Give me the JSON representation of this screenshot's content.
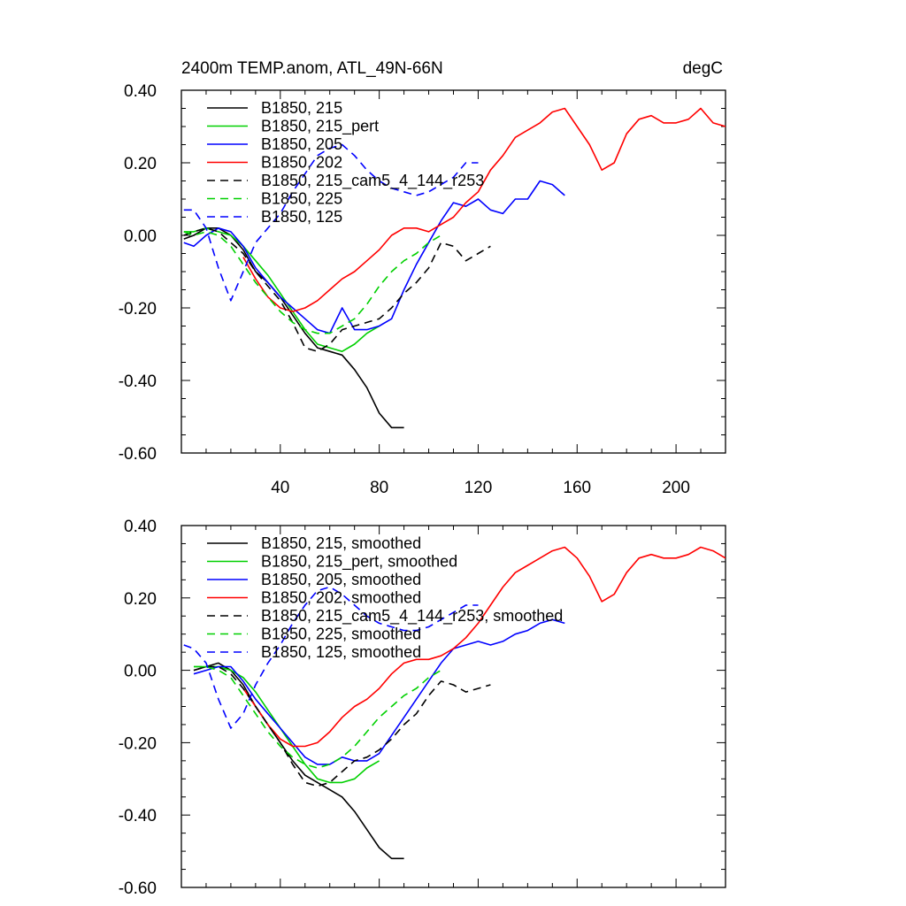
{
  "chart_data": [
    {
      "type": "line",
      "title": "2400m TEMP.anom, ATL_49N-66N",
      "units": "degC",
      "xlim": [
        0,
        220
      ],
      "ylim": [
        -0.6,
        0.4
      ],
      "x_tick_values": [
        40,
        80,
        120,
        160,
        200
      ],
      "x_tick_labels": [
        "40",
        "80",
        "120",
        "160",
        "200"
      ],
      "y_tick_values": [
        0.4,
        0.2,
        0.0,
        -0.2,
        -0.4,
        -0.6
      ],
      "y_tick_labels": [
        "0.40",
        "0.20",
        "0.00",
        "-0.20",
        "-0.40",
        "-0.60"
      ],
      "grid": false,
      "legend_position": "top-left",
      "series": [
        {
          "name": "B1850, 215",
          "color": "#000000",
          "dash": "solid",
          "x": [
            1,
            5,
            10,
            15,
            20,
            25,
            30,
            35,
            40,
            45,
            50,
            55,
            60,
            65,
            70,
            75,
            80,
            85,
            90
          ],
          "y": [
            -0.01,
            0.0,
            0.02,
            0.02,
            0.0,
            -0.04,
            -0.1,
            -0.13,
            -0.17,
            -0.22,
            -0.27,
            -0.31,
            -0.32,
            -0.33,
            -0.37,
            -0.42,
            -0.49,
            -0.53,
            -0.53
          ]
        },
        {
          "name": "B1850, 215_pert",
          "color": "#00d000",
          "dash": "solid",
          "x": [
            1,
            5,
            10,
            15,
            20,
            25,
            30,
            35,
            40,
            45,
            50,
            55,
            60,
            65,
            70,
            75,
            80
          ],
          "y": [
            0.01,
            0.01,
            0.02,
            0.01,
            0.0,
            -0.03,
            -0.07,
            -0.11,
            -0.16,
            -0.21,
            -0.26,
            -0.3,
            -0.31,
            -0.32,
            -0.3,
            -0.27,
            -0.25
          ]
        },
        {
          "name": "B1850, 205",
          "color": "#0000ff",
          "dash": "solid",
          "x": [
            1,
            5,
            10,
            15,
            20,
            25,
            30,
            35,
            40,
            45,
            50,
            55,
            60,
            65,
            70,
            75,
            80,
            85,
            90,
            95,
            100,
            105,
            110,
            115,
            120,
            125,
            130,
            135,
            140,
            145,
            150,
            155
          ],
          "y": [
            -0.02,
            -0.03,
            0.0,
            0.02,
            0.01,
            -0.03,
            -0.09,
            -0.13,
            -0.17,
            -0.2,
            -0.23,
            -0.26,
            -0.27,
            -0.2,
            -0.26,
            -0.26,
            -0.25,
            -0.23,
            -0.15,
            -0.08,
            -0.02,
            0.04,
            0.09,
            0.08,
            0.1,
            0.07,
            0.06,
            0.1,
            0.1,
            0.15,
            0.14,
            0.11
          ]
        },
        {
          "name": "B1850, 202",
          "color": "#ff0000",
          "dash": "solid",
          "x": [
            25,
            30,
            35,
            40,
            45,
            50,
            55,
            60,
            65,
            70,
            75,
            80,
            85,
            90,
            95,
            100,
            105,
            110,
            115,
            120,
            125,
            130,
            135,
            140,
            145,
            150,
            155,
            160,
            165,
            170,
            175,
            180,
            185,
            190,
            195,
            200,
            205,
            210,
            215,
            220
          ],
          "y": [
            -0.06,
            -0.12,
            -0.17,
            -0.2,
            -0.21,
            -0.2,
            -0.18,
            -0.15,
            -0.12,
            -0.1,
            -0.07,
            -0.04,
            0.0,
            0.02,
            0.02,
            0.01,
            0.03,
            0.05,
            0.09,
            0.12,
            0.18,
            0.22,
            0.27,
            0.29,
            0.31,
            0.34,
            0.35,
            0.3,
            0.25,
            0.18,
            0.2,
            0.28,
            0.32,
            0.33,
            0.31,
            0.31,
            0.32,
            0.35,
            0.31,
            0.3
          ]
        },
        {
          "name": "B1850, 215_cam5_4_144_r253",
          "color": "#000000",
          "dash": "dashed",
          "x": [
            1,
            5,
            10,
            15,
            20,
            25,
            30,
            35,
            40,
            45,
            50,
            55,
            60,
            65,
            70,
            75,
            80,
            85,
            90,
            95,
            100,
            105,
            110,
            115,
            120,
            125
          ],
          "y": [
            0.0,
            0.01,
            0.02,
            0.01,
            -0.02,
            -0.05,
            -0.1,
            -0.14,
            -0.18,
            -0.24,
            -0.31,
            -0.32,
            -0.3,
            -0.26,
            -0.25,
            -0.24,
            -0.23,
            -0.2,
            -0.16,
            -0.13,
            -0.09,
            -0.02,
            -0.03,
            -0.07,
            -0.05,
            -0.03
          ]
        },
        {
          "name": "B1850, 225",
          "color": "#00d000",
          "dash": "dashed",
          "x": [
            1,
            5,
            10,
            15,
            20,
            25,
            30,
            35,
            40,
            45,
            50,
            55,
            60,
            65,
            70,
            75,
            80,
            85,
            90,
            95,
            100,
            105
          ],
          "y": [
            0.01,
            0.0,
            0.01,
            0.0,
            -0.03,
            -0.08,
            -0.13,
            -0.17,
            -0.21,
            -0.24,
            -0.26,
            -0.27,
            -0.27,
            -0.25,
            -0.23,
            -0.19,
            -0.14,
            -0.1,
            -0.07,
            -0.05,
            -0.02,
            0.0
          ]
        },
        {
          "name": "B1850, 125",
          "color": "#0000ff",
          "dash": "dashed",
          "x": [
            1,
            5,
            10,
            15,
            20,
            25,
            30,
            35,
            40,
            45,
            50,
            55,
            60,
            65,
            70,
            75,
            80,
            85,
            90,
            95,
            100,
            105,
            110,
            115,
            120
          ],
          "y": [
            0.07,
            0.07,
            0.02,
            -0.09,
            -0.18,
            -0.1,
            -0.02,
            0.02,
            0.06,
            0.12,
            0.17,
            0.22,
            0.24,
            0.25,
            0.22,
            0.18,
            0.15,
            0.13,
            0.12,
            0.11,
            0.12,
            0.14,
            0.16,
            0.2,
            0.2
          ]
        }
      ]
    },
    {
      "type": "line",
      "title": "",
      "units": "",
      "xlim": [
        0,
        220
      ],
      "ylim": [
        -0.6,
        0.4
      ],
      "x_tick_values": [
        40,
        80,
        120,
        160,
        200
      ],
      "y_tick_values": [
        0.4,
        0.2,
        0.0,
        -0.2,
        -0.4,
        -0.6
      ],
      "y_tick_labels": [
        "0.40",
        "0.20",
        "0.00",
        "-0.20",
        "-0.40",
        "-0.60"
      ],
      "grid": false,
      "legend_position": "top-left",
      "series": [
        {
          "name": "B1850, 215, smoothed",
          "color": "#000000",
          "dash": "solid",
          "x": [
            5,
            10,
            15,
            20,
            25,
            30,
            35,
            40,
            45,
            50,
            55,
            60,
            65,
            70,
            75,
            80,
            85,
            90
          ],
          "y": [
            0.0,
            0.01,
            0.02,
            0.0,
            -0.04,
            -0.1,
            -0.15,
            -0.2,
            -0.25,
            -0.29,
            -0.31,
            -0.33,
            -0.35,
            -0.39,
            -0.44,
            -0.49,
            -0.52,
            -0.52
          ]
        },
        {
          "name": "B1850, 215_pert, smoothed",
          "color": "#00d000",
          "dash": "solid",
          "x": [
            5,
            10,
            15,
            20,
            25,
            30,
            35,
            40,
            45,
            50,
            55,
            60,
            65,
            70,
            75,
            80
          ],
          "y": [
            0.01,
            0.01,
            0.01,
            0.0,
            -0.02,
            -0.06,
            -0.11,
            -0.16,
            -0.21,
            -0.26,
            -0.3,
            -0.31,
            -0.31,
            -0.3,
            -0.27,
            -0.25
          ]
        },
        {
          "name": "B1850, 205, smoothed",
          "color": "#0000ff",
          "dash": "solid",
          "x": [
            5,
            10,
            15,
            20,
            25,
            30,
            35,
            40,
            45,
            50,
            55,
            60,
            65,
            70,
            75,
            80,
            85,
            90,
            95,
            100,
            105,
            110,
            115,
            120,
            125,
            130,
            135,
            140,
            145,
            150,
            155
          ],
          "y": [
            -0.01,
            0.0,
            0.01,
            0.01,
            -0.03,
            -0.08,
            -0.12,
            -0.16,
            -0.2,
            -0.24,
            -0.26,
            -0.26,
            -0.24,
            -0.25,
            -0.25,
            -0.23,
            -0.18,
            -0.13,
            -0.08,
            -0.03,
            0.02,
            0.06,
            0.07,
            0.08,
            0.07,
            0.08,
            0.1,
            0.11,
            0.13,
            0.14,
            0.13
          ]
        },
        {
          "name": "B1850, 202, smoothed",
          "color": "#ff0000",
          "dash": "solid",
          "x": [
            25,
            30,
            35,
            40,
            45,
            50,
            55,
            60,
            65,
            70,
            75,
            80,
            85,
            90,
            95,
            100,
            105,
            110,
            115,
            120,
            125,
            130,
            135,
            140,
            145,
            150,
            155,
            160,
            165,
            170,
            175,
            180,
            185,
            190,
            195,
            200,
            205,
            210,
            215,
            220
          ],
          "y": [
            -0.05,
            -0.1,
            -0.15,
            -0.19,
            -0.21,
            -0.21,
            -0.2,
            -0.17,
            -0.13,
            -0.1,
            -0.08,
            -0.05,
            -0.01,
            0.02,
            0.03,
            0.03,
            0.04,
            0.06,
            0.09,
            0.13,
            0.18,
            0.23,
            0.27,
            0.29,
            0.31,
            0.33,
            0.34,
            0.31,
            0.26,
            0.19,
            0.21,
            0.27,
            0.31,
            0.32,
            0.31,
            0.31,
            0.32,
            0.34,
            0.33,
            0.31
          ]
        },
        {
          "name": "B1850, 215_cam5_4_144_r253, smoothed",
          "color": "#000000",
          "dash": "dashed",
          "x": [
            5,
            10,
            15,
            20,
            25,
            30,
            35,
            40,
            45,
            50,
            55,
            60,
            65,
            70,
            75,
            80,
            85,
            90,
            95,
            100,
            105,
            110,
            115,
            120,
            125
          ],
          "y": [
            0.0,
            0.01,
            0.01,
            -0.01,
            -0.05,
            -0.1,
            -0.15,
            -0.2,
            -0.26,
            -0.31,
            -0.32,
            -0.31,
            -0.28,
            -0.25,
            -0.24,
            -0.22,
            -0.19,
            -0.15,
            -0.12,
            -0.07,
            -0.03,
            -0.04,
            -0.06,
            -0.05,
            -0.04
          ]
        },
        {
          "name": "B1850, 225, smoothed",
          "color": "#00d000",
          "dash": "dashed",
          "x": [
            5,
            10,
            15,
            20,
            25,
            30,
            35,
            40,
            45,
            50,
            55,
            60,
            65,
            70,
            75,
            80,
            85,
            90,
            95,
            100,
            105
          ],
          "y": [
            0.01,
            0.01,
            0.0,
            -0.02,
            -0.07,
            -0.12,
            -0.17,
            -0.21,
            -0.24,
            -0.26,
            -0.27,
            -0.26,
            -0.24,
            -0.21,
            -0.17,
            -0.13,
            -0.1,
            -0.07,
            -0.05,
            -0.02,
            0.0
          ]
        },
        {
          "name": "B1850, 125, smoothed",
          "color": "#0000ff",
          "dash": "dashed",
          "x": [
            1,
            5,
            10,
            15,
            20,
            25,
            30,
            35,
            40,
            45,
            50,
            55,
            60,
            65,
            70,
            75,
            80,
            85,
            90,
            95,
            100,
            105,
            110,
            115,
            120
          ],
          "y": [
            0.07,
            0.06,
            0.02,
            -0.08,
            -0.16,
            -0.12,
            -0.04,
            0.02,
            0.07,
            0.13,
            0.18,
            0.22,
            0.23,
            0.21,
            0.18,
            0.15,
            0.13,
            0.12,
            0.11,
            0.11,
            0.12,
            0.14,
            0.16,
            0.18,
            0.18
          ]
        }
      ]
    }
  ]
}
